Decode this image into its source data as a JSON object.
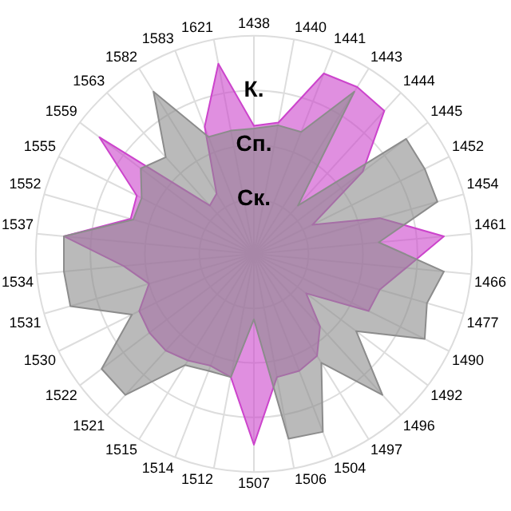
{
  "chart_data": {
    "type": "radar",
    "categories": [
      "1438",
      "1440",
      "1441",
      "1443",
      "1444",
      "1445",
      "1452",
      "1454",
      "1461",
      "1466",
      "1477",
      "1490",
      "1492",
      "1496",
      "1497",
      "1504",
      "1506",
      "1507",
      "1512",
      "1514",
      "1515",
      "1521",
      "1522",
      "1530",
      "1531",
      "1534",
      "1537",
      "1552",
      "1555",
      "1559",
      "1563",
      "1582",
      "1583",
      "1621"
    ],
    "series": [
      {
        "color": "#8c8c8c",
        "values": [
          2.3,
          2.4,
          2.4,
          3.5,
          1.2,
          3.5,
          3.5,
          3.5,
          2.3,
          3.5,
          3.3,
          3.5,
          2.35,
          3.5,
          2.35,
          3.5,
          3.45,
          1.2,
          2.3,
          2.3,
          2.4,
          3.5,
          3.5,
          2.5,
          3.5,
          3.5,
          3.5,
          2.3,
          2.3,
          2.6,
          2.4,
          3.5,
          2.3,
          2.3
        ]
      },
      {
        "color": "#cc44cc",
        "values": [
          2.35,
          2.45,
          3.55,
          3.6,
          3.55,
          2.5,
          1.2,
          2.4,
          3.5,
          2.8,
          2.4,
          2.35,
          1.2,
          1.8,
          2.2,
          2.3,
          2.3,
          3.5,
          2.3,
          2.2,
          2.3,
          2.4,
          2.4,
          2.35,
          2.0,
          2.4,
          3.5,
          2.35,
          2.4,
          3.55,
          1.2,
          1.3,
          2.5,
          3.55
        ]
      }
    ],
    "ylim": [
      0,
      4
    ],
    "yticks": [
      {
        "value": 1,
        "label": "Ск."
      },
      {
        "value": 2,
        "label": "Сп."
      },
      {
        "value": 3,
        "label": "К."
      }
    ],
    "grid": true,
    "legend": false,
    "marker": "none"
  }
}
